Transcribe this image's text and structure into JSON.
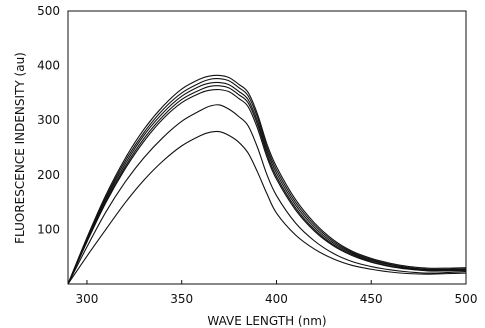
{
  "chart_data": {
    "type": "line",
    "xlabel": "WAVE LENGTH (nm)",
    "ylabel": "FLUORESCENCE INDENSITY (au)",
    "xlim": [
      290,
      500
    ],
    "ylim": [
      0,
      500
    ],
    "xticks": [
      300,
      350,
      400,
      450,
      500
    ],
    "yticks": [
      100,
      200,
      300,
      400,
      500
    ],
    "x": [
      290,
      300,
      310,
      320,
      330,
      340,
      350,
      360,
      365,
      370,
      375,
      380,
      385,
      390,
      395,
      400,
      410,
      420,
      430,
      440,
      450,
      460,
      470,
      480,
      490,
      500
    ],
    "series": [
      {
        "values": [
          0,
          51,
          100,
          148,
          190,
          225,
          253,
          272,
          278,
          279,
          272,
          260,
          240,
          205,
          165,
          130,
          90,
          64,
          46,
          34,
          27,
          22,
          19,
          18,
          19,
          20
        ]
      },
      {
        "values": [
          0,
          68,
          132,
          186,
          231,
          268,
          298,
          318,
          326,
          328,
          320,
          307,
          290,
          250,
          200,
          162,
          112,
          79,
          56,
          41,
          32,
          26,
          22,
          20,
          21,
          23
        ]
      },
      {
        "values": [
          0,
          77,
          149,
          210,
          261,
          302,
          332,
          350,
          355,
          356,
          352,
          340,
          325,
          285,
          232,
          192,
          136,
          97,
          70,
          52,
          40,
          32,
          27,
          24,
          24,
          25
        ]
      },
      {
        "values": [
          0,
          79,
          152,
          214,
          266,
          307,
          338,
          356,
          362,
          363,
          359,
          347,
          332,
          292,
          238,
          197,
          140,
          100,
          72,
          54,
          41,
          33,
          28,
          25,
          25,
          26
        ]
      },
      {
        "values": [
          0,
          81,
          156,
          219,
          272,
          313,
          344,
          363,
          368,
          369,
          365,
          353,
          338,
          298,
          244,
          203,
          145,
          104,
          75,
          56,
          43,
          35,
          29,
          26,
          26,
          27
        ]
      },
      {
        "values": [
          0,
          83,
          159,
          224,
          277,
          319,
          350,
          369,
          375,
          376,
          372,
          360,
          345,
          305,
          250,
          209,
          150,
          108,
          78,
          58,
          45,
          36,
          30,
          27,
          27,
          28
        ]
      },
      {
        "values": [
          0,
          85,
          163,
          229,
          283,
          325,
          357,
          376,
          381,
          382,
          378,
          366,
          351,
          311,
          256,
          215,
          155,
          112,
          81,
          60,
          47,
          38,
          32,
          29,
          29,
          30
        ]
      }
    ]
  }
}
